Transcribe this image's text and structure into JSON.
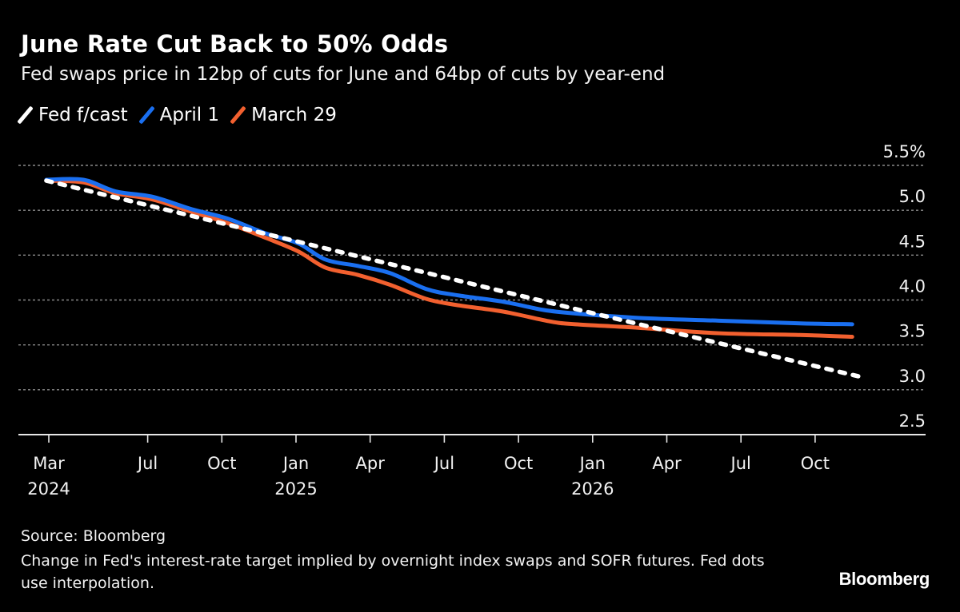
{
  "header": {
    "title": "June Rate Cut Back to 50% Odds",
    "subtitle": "Fed swaps price in 12bp of cuts for June and 64bp of cuts by year-end"
  },
  "legend": [
    {
      "label": "Fed f/cast",
      "color": "#ffffff",
      "style": "dashed"
    },
    {
      "label": "April 1",
      "color": "#1a6ff0",
      "style": "solid"
    },
    {
      "label": "March 29",
      "color": "#f2602f",
      "style": "solid"
    }
  ],
  "footer": {
    "source": "Source: Bloomberg",
    "note": "Change in Fed's interest-rate target implied by overnight index swaps and SOFR futures. Fed dots use interpolation.",
    "brand": "Bloomberg"
  },
  "chart_data": {
    "type": "line",
    "title": "June Rate Cut Back to 50% Odds",
    "subtitle": "Fed swaps price in 12bp of cuts for June and 64bp of cuts by year-end",
    "xlabel": "",
    "ylabel": "%",
    "x_unit": "months since Mar 2024",
    "xlim": [
      -1.2,
      33.8
    ],
    "ylim": [
      2.5,
      5.5
    ],
    "y_ticks": [
      {
        "value": 5.5,
        "label": "5.5%"
      },
      {
        "value": 5.0,
        "label": "5.0"
      },
      {
        "value": 4.5,
        "label": "4.5"
      },
      {
        "value": 4.0,
        "label": "4.0"
      },
      {
        "value": 3.5,
        "label": "3.5"
      },
      {
        "value": 3.0,
        "label": "3.0"
      },
      {
        "value": 2.5,
        "label": "2.5"
      }
    ],
    "x_ticks": [
      {
        "value": 0,
        "label": "Mar",
        "year": "2024"
      },
      {
        "value": 4,
        "label": "Jul",
        "year": ""
      },
      {
        "value": 7,
        "label": "Oct",
        "year": ""
      },
      {
        "value": 10,
        "label": "Jan",
        "year": "2025"
      },
      {
        "value": 13,
        "label": "Apr",
        "year": ""
      },
      {
        "value": 16,
        "label": "Jul",
        "year": ""
      },
      {
        "value": 19,
        "label": "Oct",
        "year": ""
      },
      {
        "value": 22,
        "label": "Jan",
        "year": "2026"
      },
      {
        "value": 25,
        "label": "Apr",
        "year": ""
      },
      {
        "value": 28,
        "label": "Jul",
        "year": ""
      },
      {
        "value": 31,
        "label": "Oct",
        "year": ""
      }
    ],
    "grid": true,
    "legend_position": "top-left",
    "y_axis_side": "right",
    "series": [
      {
        "name": "Fed f/cast",
        "style": "dashed",
        "x": [
          -0.1,
          21.9,
          32.9
        ],
        "values": [
          5.33,
          3.86,
          3.14
        ]
      },
      {
        "name": "April 1",
        "style": "solid",
        "x": [
          -0.1,
          1.4,
          2.7,
          4.2,
          5.8,
          7.2,
          8.8,
          10.1,
          11.2,
          12.5,
          13.8,
          15.3,
          16.6,
          18.4,
          20.0,
          21.3,
          23.9,
          27.1,
          30.4,
          32.5
        ],
        "values": [
          5.34,
          5.34,
          5.21,
          5.15,
          5.01,
          4.91,
          4.74,
          4.63,
          4.45,
          4.38,
          4.3,
          4.12,
          4.05,
          3.98,
          3.89,
          3.85,
          3.8,
          3.77,
          3.74,
          3.73
        ]
      },
      {
        "name": "March 29",
        "style": "solid",
        "x": [
          -0.1,
          1.4,
          2.7,
          4.2,
          5.8,
          7.2,
          8.8,
          10.1,
          11.2,
          12.5,
          13.8,
          15.3,
          16.6,
          18.4,
          20.3,
          21.3,
          23.9,
          27.1,
          30.4,
          32.5
        ],
        "values": [
          5.33,
          5.31,
          5.19,
          5.12,
          4.98,
          4.86,
          4.69,
          4.54,
          4.36,
          4.28,
          4.17,
          4.01,
          3.94,
          3.87,
          3.76,
          3.73,
          3.69,
          3.63,
          3.61,
          3.59
        ]
      }
    ]
  }
}
